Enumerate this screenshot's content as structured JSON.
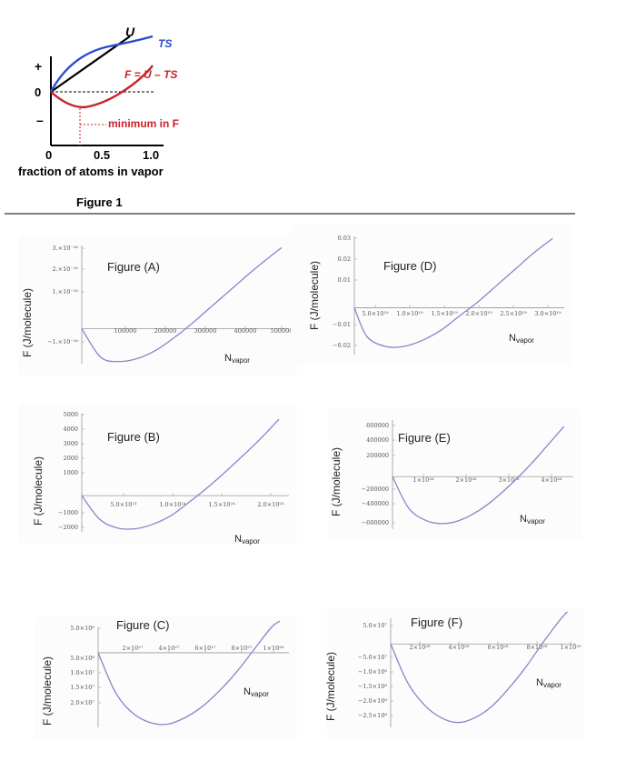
{
  "figure1": {
    "caption": "Figure 1",
    "xlabel": "fraction of atoms in vapor",
    "x_ticks": [
      "0",
      "0.5",
      "1.0"
    ],
    "y_ticks": [
      "+",
      "0",
      "–"
    ],
    "label_U": "U",
    "label_TS": "TS",
    "label_F": "F = U – TS",
    "label_min": "minimum in F",
    "colors": {
      "TS": "#2a4ad0",
      "F": "#c8232c",
      "U": "#000000"
    }
  },
  "chart_data": [
    {
      "type": "line",
      "panel": "Figure (A)",
      "title": "Figure (A)",
      "ylabel": "F (J/molecule)",
      "xlabel": "Nvapor",
      "x_ticks": [
        "100000",
        "200000",
        "300000",
        "400000",
        "500000"
      ],
      "y_ticks": [
        "3.×10⁻¹⁶",
        "2.×10⁻¹⁶",
        "1.×10⁻¹⁶",
        "−1.×10⁻¹⁶"
      ],
      "x": [
        0,
        50000,
        100000,
        150000,
        200000,
        250000,
        300000,
        350000,
        400000,
        450000,
        500000,
        530000
      ],
      "y": [
        0,
        -1.3e-16,
        -1.5e-16,
        -1.35e-16,
        -9.5e-17,
        -3.5e-17,
        3.5e-17,
        1.1e-16,
        1.85e-16,
        2.6e-16,
        3.3e-16,
        3.7e-16
      ],
      "xlim": [
        0,
        535000
      ],
      "ylim": [
        -1.6e-16,
        3.8e-16
      ],
      "color": "#8a84c8"
    },
    {
      "type": "line",
      "panel": "Figure (B)",
      "title": "Figure (B)",
      "ylabel": "F (J/molecule)",
      "xlabel": "Nvapor",
      "x_ticks": [
        "5.0×10²³",
        "1.0×10²⁴",
        "1.5×10²⁴",
        "2.0×10²⁴"
      ],
      "y_ticks": [
        "5000",
        "4000",
        "3000",
        "2000",
        "1000",
        "−1000",
        "−2000"
      ],
      "x": [
        0,
        2e+23,
        4e+23,
        6e+23,
        8e+23,
        1e+24,
        1.2e+24,
        1.4e+24,
        1.6e+24,
        1.8e+24,
        2e+24,
        2.2e+24
      ],
      "y": [
        0,
        -1500,
        -2050,
        -2100,
        -1800,
        -1250,
        -400,
        500,
        1500,
        2550,
        3650,
        4850
      ],
      "xlim": [
        0,
        2.25e+24
      ],
      "ylim": [
        -2300,
        5200
      ],
      "color": "#8a84c8"
    },
    {
      "type": "line",
      "panel": "Figure (C)",
      "title": "Figure (C)",
      "ylabel": "F (J/molecule)",
      "xlabel": "Nvapor",
      "x_ticks": [
        "2×10²⁷",
        "4×10²⁷",
        "6×10²⁷",
        "8×10²⁷",
        "1×10²⁸"
      ],
      "y_ticks": [
        "5.0×10⁶",
        "5.0×10⁶",
        "1.0×10⁷",
        "1.5×10⁷",
        "2.0×10⁷"
      ],
      "x": [
        0,
        1e+27,
        2e+27,
        3e+27,
        4e+27,
        5e+27,
        6e+27,
        7e+27,
        8e+27,
        9e+27,
        1e+28,
        1.05e+28
      ],
      "y": [
        0,
        -12500000.0,
        -19000000.0,
        -22000000.0,
        -22500000.0,
        -20500000.0,
        -17000000.0,
        -12000000.0,
        -6000000.0,
        1000000.0,
        8000000.0,
        10000000.0
      ],
      "xlim": [
        0,
        1.07e+28
      ],
      "ylim": [
        -23500000.0,
        8000000.0
      ],
      "color": "#8a84c8"
    },
    {
      "type": "line",
      "panel": "Figure (D)",
      "title": "Figure (D)",
      "ylabel": "F (J/molecule)",
      "xlabel": "Nvapor",
      "x_ticks": [
        "5.0×10¹⁸",
        "1.0×10¹⁹",
        "1.5×10¹⁹",
        "2.0×10¹⁹",
        "2.5×10¹⁹",
        "3.0×10¹⁹"
      ],
      "y_ticks": [
        "0.03",
        "0.02",
        "0.01",
        "−0.01",
        "−0.02"
      ],
      "x": [
        0,
        2e+18,
        5e+18,
        8e+18,
        1.1e+19,
        1.4e+19,
        1.7e+19,
        2e+19,
        2.3e+19,
        2.6e+19,
        2.9e+19,
        3.2e+19
      ],
      "y": [
        0,
        -0.014,
        -0.019,
        -0.019,
        -0.016,
        -0.011,
        -0.004,
        0.003,
        0.011,
        0.019,
        0.027,
        0.034
      ],
      "xlim": [
        0,
        3.3e+19
      ],
      "ylim": [
        -0.023,
        0.035
      ],
      "color": "#8a84c8"
    },
    {
      "type": "line",
      "panel": "Figure (E)",
      "title": "Figure (E)",
      "ylabel": "F (J/molecule)",
      "xlabel": "Nvapor",
      "x_ticks": [
        "1×10²⁶",
        "2×10²⁶",
        "3×10²⁶",
        "4×10²⁶"
      ],
      "y_ticks": [
        "600000",
        "400000",
        "200000",
        "−200000",
        "−400000",
        "−600000"
      ],
      "x": [
        0,
        4e+25,
        8e+25,
        1.2e+26,
        1.6e+26,
        2e+26,
        2.4e+26,
        2.8e+26,
        3.2e+26,
        3.6e+26,
        4e+26,
        4.4e+26
      ],
      "y": [
        0,
        -380000,
        -530000,
        -580000,
        -560000,
        -480000,
        -360000,
        -200000,
        -20000,
        180000,
        400000,
        620000
      ],
      "xlim": [
        0,
        4.5e+26
      ],
      "ylim": [
        -650000,
        700000
      ],
      "color": "#8a84c8"
    },
    {
      "type": "line",
      "panel": "Figure (F)",
      "title": "Figure (F)",
      "ylabel": "F (J/molecule)",
      "xlabel": "Nvapor",
      "x_ticks": [
        "2×10²⁸",
        "4×10²⁸",
        "6×10²⁸",
        "8×10²⁸",
        "1×10²⁹"
      ],
      "y_ticks": [
        "5.0×10⁷",
        "−5.0×10⁷",
        "−1.0×10⁸",
        "−1.5×10⁸",
        "−2.0×10⁸",
        "−2.5×10⁸"
      ],
      "x": [
        0,
        1e+28,
        2e+28,
        3e+28,
        4e+28,
        5e+28,
        6e+28,
        7e+28,
        8e+28,
        9e+28,
        1e+29,
        1.05e+29
      ],
      "y": [
        0,
        -120000000.0,
        -190000000.0,
        -230000000.0,
        -245000000.0,
        -230000000.0,
        -195000000.0,
        -140000000.0,
        -75000000.0,
        0,
        70000000.0,
        100000000.0
      ],
      "xlim": [
        0,
        1.07e+29
      ],
      "ylim": [
        -260000000.0,
        80000000.0
      ],
      "color": "#8a84c8"
    }
  ]
}
